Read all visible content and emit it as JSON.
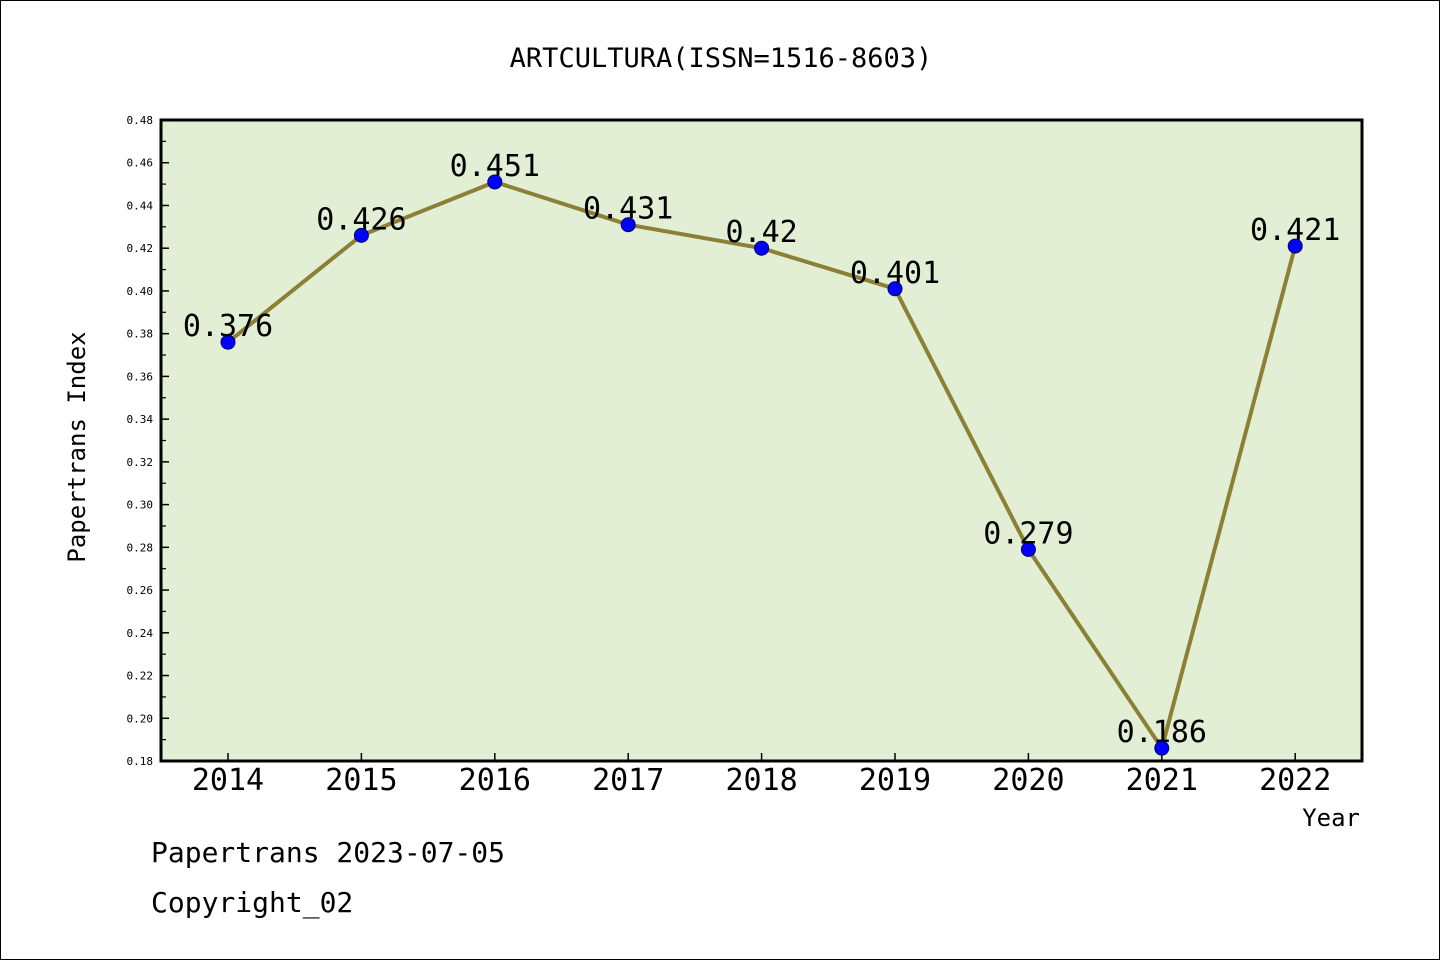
{
  "chart_data": {
    "type": "line",
    "title": "ARTCULTURA(ISSN=1516-8603)",
    "xlabel": "Year",
    "ylabel": "Papertrans Index",
    "categories": [
      "2014",
      "2015",
      "2016",
      "2017",
      "2018",
      "2019",
      "2020",
      "2021",
      "2022"
    ],
    "series": [
      {
        "values": [
          0.376,
          0.426,
          0.451,
          0.431,
          0.42,
          0.401,
          0.279,
          0.186,
          0.421
        ],
        "labels": [
          "0.376",
          "0.426",
          "0.451",
          "0.431",
          "0.42",
          "0.401",
          "0.279",
          "0.186",
          "0.421"
        ]
      }
    ],
    "ylim": [
      0.18,
      0.48
    ],
    "yticks": [
      "0.18",
      "0.20",
      "0.22",
      "0.24",
      "0.26",
      "0.28",
      "0.30",
      "0.32",
      "0.34",
      "0.36",
      "0.38",
      "0.40",
      "0.42",
      "0.44",
      "0.46",
      "0.48"
    ],
    "grid": false,
    "colors": {
      "plot_background": "#e2efd4",
      "line": "#8b8035",
      "marker": "#0000ff"
    }
  },
  "footer": {
    "date_text": "Papertrans 2023-07-05",
    "copyright_text": "Copyright_02"
  }
}
